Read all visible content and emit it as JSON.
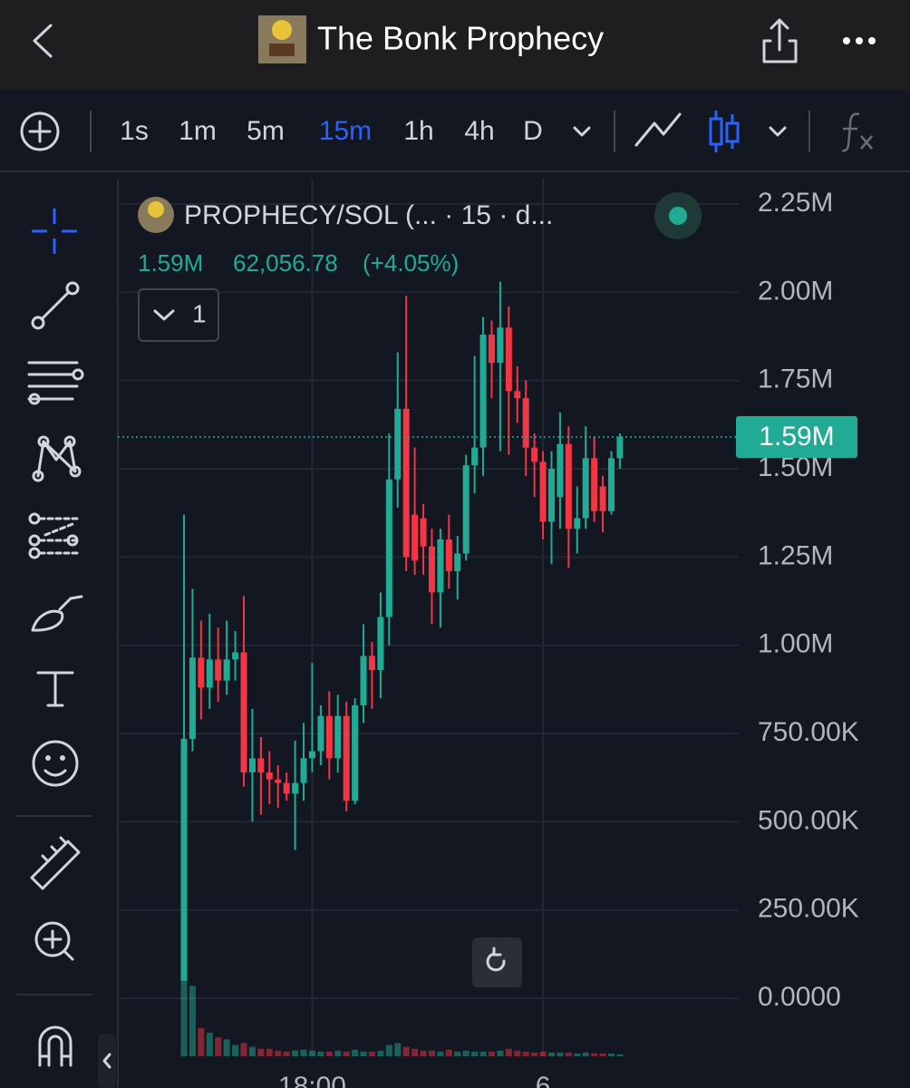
{
  "header": {
    "title": "The Bonk Prophecy"
  },
  "toolbar": {
    "intervals": [
      "1s",
      "1m",
      "5m",
      "15m",
      "1h",
      "4h",
      "D"
    ],
    "active_interval": 3
  },
  "legend": {
    "symbol": "PROPHECY/SOL (... · 15 · d...",
    "last": "1.59M",
    "change": "62,056.78",
    "change_pct": "(+4.05%)"
  },
  "indicators_collapsed": "1",
  "chart_data": {
    "type": "candlestick",
    "categories": [
      null,
      null,
      null,
      null,
      null,
      null,
      null,
      null,
      null,
      null,
      null,
      null,
      null,
      null,
      null,
      "18:00",
      null,
      null,
      null,
      null,
      null,
      null,
      null,
      null,
      null,
      null,
      null,
      null,
      null,
      null,
      null,
      null,
      null,
      null,
      null,
      null,
      null,
      null,
      null,
      null,
      null,
      null,
      "6",
      null,
      null,
      null,
      null,
      null,
      null,
      null,
      null,
      null
    ],
    "open": [
      50000,
      735000,
      965000,
      880000,
      960000,
      900000,
      960000,
      980000,
      640000,
      680000,
      640000,
      620000,
      610000,
      580000,
      610000,
      680000,
      700000,
      800000,
      680000,
      800000,
      560000,
      830000,
      970000,
      930000,
      1080000,
      1470000,
      1670000,
      1370000,
      1360000,
      1280000,
      1150000,
      1300000,
      1210000,
      1260000,
      1510000,
      1560000,
      1880000,
      1800000,
      1900000,
      1720000,
      1700000,
      1560000,
      1520000,
      1350000,
      1420000,
      1570000,
      1330000,
      1360000,
      1530000,
      1450000,
      1380000,
      1530000
    ],
    "high": [
      1370000,
      1160000,
      1070000,
      1090000,
      1050000,
      1070000,
      1040000,
      1140000,
      820000,
      740000,
      700000,
      660000,
      640000,
      730000,
      780000,
      950000,
      830000,
      870000,
      860000,
      840000,
      850000,
      1060000,
      1010000,
      1150000,
      1600000,
      1830000,
      1990000,
      1560000,
      1400000,
      1330000,
      1330000,
      1370000,
      1310000,
      1540000,
      1820000,
      1930000,
      1920000,
      2030000,
      1960000,
      1790000,
      1750000,
      1600000,
      1550000,
      1550000,
      1660000,
      1620000,
      1450000,
      1620000,
      1590000,
      1480000,
      1550000,
      1600000
    ],
    "low": [
      50000,
      700000,
      790000,
      820000,
      840000,
      860000,
      900000,
      600000,
      500000,
      520000,
      550000,
      540000,
      560000,
      420000,
      560000,
      640000,
      660000,
      620000,
      640000,
      530000,
      550000,
      780000,
      820000,
      850000,
      1000000,
      1390000,
      1210000,
      1200000,
      1200000,
      1060000,
      1050000,
      1160000,
      1130000,
      1240000,
      1430000,
      1480000,
      1700000,
      1550000,
      1540000,
      1630000,
      1480000,
      1420000,
      1300000,
      1230000,
      1330000,
      1220000,
      1260000,
      1330000,
      1350000,
      1320000,
      1370000,
      1500000
    ],
    "close": [
      735000,
      965000,
      880000,
      960000,
      900000,
      960000,
      980000,
      640000,
      680000,
      640000,
      620000,
      610000,
      580000,
      610000,
      680000,
      700000,
      800000,
      680000,
      800000,
      560000,
      830000,
      970000,
      930000,
      1080000,
      1470000,
      1670000,
      1250000,
      1240000,
      1280000,
      1150000,
      1300000,
      1210000,
      1260000,
      1510000,
      1560000,
      1880000,
      1800000,
      1900000,
      1720000,
      1700000,
      1560000,
      1520000,
      1350000,
      1500000,
      1570000,
      1330000,
      1360000,
      1530000,
      1380000,
      1380000,
      1530000,
      1590000
    ],
    "volumes": [
      85,
      75,
      30,
      25,
      20,
      18,
      12,
      14,
      10,
      8,
      8,
      6,
      5,
      6,
      7,
      6,
      5,
      5,
      6,
      5,
      7,
      5,
      5,
      6,
      12,
      14,
      10,
      8,
      6,
      6,
      5,
      7,
      5,
      6,
      5,
      5,
      5,
      6,
      8,
      6,
      5,
      4,
      5,
      4,
      4,
      4,
      3,
      4,
      3,
      3,
      3,
      2
    ],
    "up_color": "#22ab94",
    "down_color": "#f23645",
    "ylim": [
      -164000,
      2327000
    ],
    "yticks": [
      {
        "value": 2250000,
        "label": "2.25M"
      },
      {
        "value": 2000000,
        "label": "2.00M"
      },
      {
        "value": 1750000,
        "label": "1.75M"
      },
      {
        "value": 1500000,
        "label": "1.50M"
      },
      {
        "value": 1250000,
        "label": "1.25M"
      },
      {
        "value": 1000000,
        "label": "1.00M"
      },
      {
        "value": 750000,
        "label": "750.00K"
      },
      {
        "value": 500000,
        "label": "500.00K"
      },
      {
        "value": 250000,
        "label": "250.00K"
      },
      {
        "value": 0,
        "label": "0.0000"
      }
    ],
    "last_price": {
      "value": 1590000,
      "label": "1.59M"
    },
    "grid": true
  }
}
